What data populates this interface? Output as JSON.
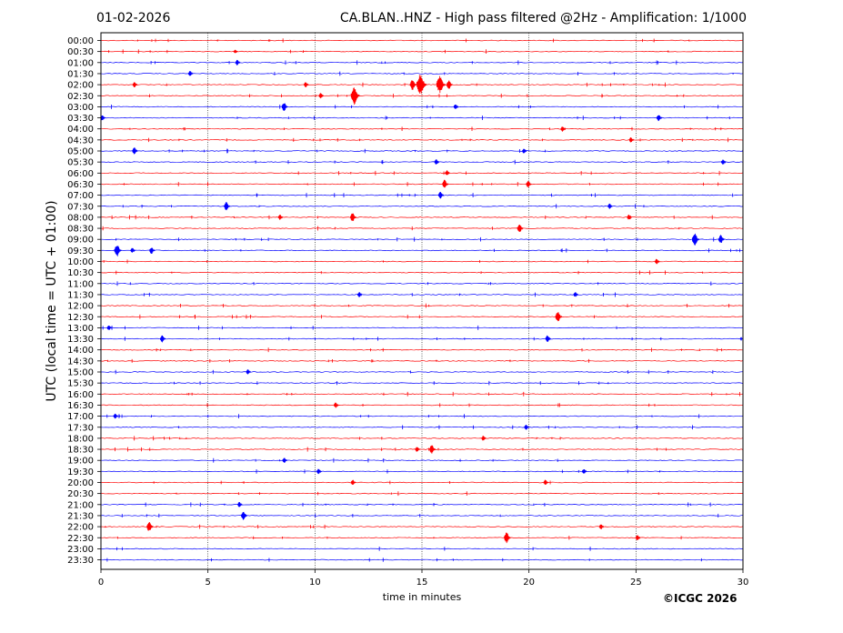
{
  "header": {
    "date": "01-02-2026",
    "title": "CA.BLAN..HNZ - High pass filtered @2Hz - Amplification: 1/1000"
  },
  "footer": {
    "credit": "©ICGC 2026"
  },
  "colors": {
    "red": "#ff0000",
    "blue": "#0000ff",
    "axis": "#000000"
  },
  "chart_data": {
    "type": "line",
    "xlabel": "time in minutes",
    "ylabel": "UTC (local time = UTC + 01:00)",
    "xlim": [
      0,
      30
    ],
    "x_ticks": [
      0,
      5,
      10,
      15,
      20,
      25,
      30
    ],
    "grid_vertical_at": [
      5,
      10,
      15,
      20,
      25
    ],
    "rows": [
      "00:00",
      "00:30",
      "01:00",
      "01:30",
      "02:00",
      "02:30",
      "03:00",
      "03:30",
      "04:00",
      "04:30",
      "05:00",
      "05:30",
      "06:00",
      "06:30",
      "07:00",
      "07:30",
      "08:00",
      "08:30",
      "09:00",
      "09:30",
      "10:00",
      "10:30",
      "11:00",
      "11:30",
      "12:00",
      "12:30",
      "13:00",
      "13:30",
      "14:00",
      "14:30",
      "15:00",
      "15:30",
      "16:00",
      "16:30",
      "17:00",
      "17:30",
      "18:00",
      "18:30",
      "19:00",
      "19:30",
      "20:00",
      "20:30",
      "21:00",
      "21:30",
      "22:00",
      "22:30",
      "23:00",
      "23:30"
    ],
    "row_colors_cycle": [
      "red",
      "red",
      "blue",
      "blue"
    ],
    "events": [
      {
        "row": "00:30",
        "minute": 6.3,
        "amp": 2
      },
      {
        "row": "01:00",
        "minute": 6.4,
        "amp": 3
      },
      {
        "row": "01:30",
        "minute": 4.2,
        "amp": 3
      },
      {
        "row": "02:00",
        "minute": 14.6,
        "amp": 6
      },
      {
        "row": "02:00",
        "minute": 15.0,
        "amp": 12
      },
      {
        "row": "02:00",
        "minute": 15.9,
        "amp": 10
      },
      {
        "row": "02:00",
        "minute": 16.3,
        "amp": 5
      },
      {
        "row": "02:00",
        "minute": 9.6,
        "amp": 3
      },
      {
        "row": "02:00",
        "minute": 1.6,
        "amp": 3
      },
      {
        "row": "02:30",
        "minute": 11.9,
        "amp": 10
      },
      {
        "row": "02:30",
        "minute": 10.3,
        "amp": 3
      },
      {
        "row": "03:00",
        "minute": 8.6,
        "amp": 5
      },
      {
        "row": "03:00",
        "minute": 16.6,
        "amp": 3
      },
      {
        "row": "03:30",
        "minute": 0.1,
        "amp": 3
      },
      {
        "row": "03:30",
        "minute": 26.1,
        "amp": 4
      },
      {
        "row": "04:00",
        "minute": 21.6,
        "amp": 3
      },
      {
        "row": "04:30",
        "minute": 24.8,
        "amp": 3
      },
      {
        "row": "05:00",
        "minute": 1.6,
        "amp": 4
      },
      {
        "row": "05:00",
        "minute": 19.8,
        "amp": 3
      },
      {
        "row": "05:30",
        "minute": 15.7,
        "amp": 3
      },
      {
        "row": "05:30",
        "minute": 29.1,
        "amp": 3
      },
      {
        "row": "06:00",
        "minute": 16.2,
        "amp": 3
      },
      {
        "row": "06:30",
        "minute": 16.1,
        "amp": 5
      },
      {
        "row": "06:30",
        "minute": 20.0,
        "amp": 4
      },
      {
        "row": "07:00",
        "minute": 15.9,
        "amp": 4
      },
      {
        "row": "07:30",
        "minute": 5.9,
        "amp": 5
      },
      {
        "row": "07:30",
        "minute": 23.8,
        "amp": 3
      },
      {
        "row": "08:00",
        "minute": 11.8,
        "amp": 5
      },
      {
        "row": "08:00",
        "minute": 8.4,
        "amp": 3
      },
      {
        "row": "08:00",
        "minute": 24.7,
        "amp": 3
      },
      {
        "row": "08:30",
        "minute": 19.6,
        "amp": 5
      },
      {
        "row": "09:00",
        "minute": 27.8,
        "amp": 7
      },
      {
        "row": "09:00",
        "minute": 29.0,
        "amp": 5
      },
      {
        "row": "09:30",
        "minute": 0.8,
        "amp": 7
      },
      {
        "row": "09:30",
        "minute": 2.4,
        "amp": 4
      },
      {
        "row": "09:30",
        "minute": 1.5,
        "amp": 3
      },
      {
        "row": "10:00",
        "minute": 26.0,
        "amp": 3
      },
      {
        "row": "11:30",
        "minute": 12.1,
        "amp": 3
      },
      {
        "row": "11:30",
        "minute": 22.2,
        "amp": 3
      },
      {
        "row": "12:30",
        "minute": 21.4,
        "amp": 6
      },
      {
        "row": "13:00",
        "minute": 0.4,
        "amp": 3
      },
      {
        "row": "13:30",
        "minute": 2.9,
        "amp": 4
      },
      {
        "row": "13:30",
        "minute": 20.9,
        "amp": 4
      },
      {
        "row": "15:00",
        "minute": 6.9,
        "amp": 3
      },
      {
        "row": "16:30",
        "minute": 11.0,
        "amp": 3
      },
      {
        "row": "17:00",
        "minute": 0.7,
        "amp": 3
      },
      {
        "row": "17:30",
        "minute": 19.9,
        "amp": 3
      },
      {
        "row": "18:00",
        "minute": 17.9,
        "amp": 3
      },
      {
        "row": "18:30",
        "minute": 15.5,
        "amp": 5
      },
      {
        "row": "18:30",
        "minute": 14.8,
        "amp": 3
      },
      {
        "row": "19:00",
        "minute": 8.6,
        "amp": 3
      },
      {
        "row": "19:30",
        "minute": 10.2,
        "amp": 3
      },
      {
        "row": "19:30",
        "minute": 22.6,
        "amp": 3
      },
      {
        "row": "20:00",
        "minute": 11.8,
        "amp": 3
      },
      {
        "row": "20:00",
        "minute": 20.8,
        "amp": 3
      },
      {
        "row": "21:00",
        "minute": 6.5,
        "amp": 3
      },
      {
        "row": "21:30",
        "minute": 6.7,
        "amp": 5
      },
      {
        "row": "22:00",
        "minute": 2.3,
        "amp": 6
      },
      {
        "row": "22:00",
        "minute": 23.4,
        "amp": 3
      },
      {
        "row": "22:30",
        "minute": 19.0,
        "amp": 6
      },
      {
        "row": "22:30",
        "minute": 25.1,
        "amp": 3
      }
    ]
  }
}
